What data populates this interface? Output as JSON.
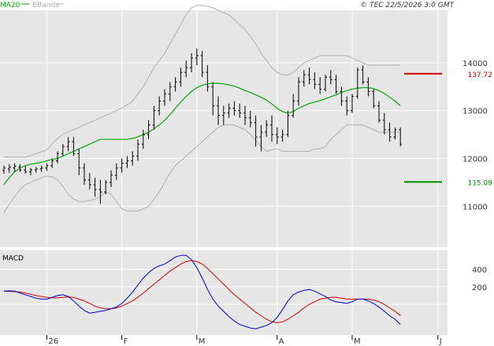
{
  "header": {
    "legend_ma": "MA20",
    "legend_bb": "BBands",
    "copyright": "© TEC 22/5/2026 3:0 GMT"
  },
  "macd_label": "MACD",
  "levels": {
    "resistance": "137.72",
    "support": "115.09"
  },
  "colors": {
    "background": "#e6e6e6",
    "price_bars": "#000000",
    "ma20": "#00aa00",
    "bbands": "#b0b0b0",
    "resistance": "#cc0000",
    "support": "#008800",
    "macd_line": "#0000cc",
    "signal_line": "#cc0000",
    "grid": "#ffffff"
  },
  "chart_data": [
    {
      "type": "ohlc",
      "y_ticks": [
        11000,
        12000,
        13000,
        14000
      ],
      "ylim": [
        10150,
        15100
      ],
      "x_ticks": [
        "26",
        "F",
        "M",
        "A",
        "M",
        "J"
      ],
      "grid": true,
      "series": [
        {
          "name": "MA20",
          "values": [
            11450,
            11600,
            11720,
            11800,
            11850,
            11880,
            11900,
            11920,
            11950,
            11980,
            12000,
            12050,
            12100,
            12150,
            12200,
            12250,
            12300,
            12350,
            12400,
            12400,
            12400,
            12400,
            12400,
            12400,
            12420,
            12450,
            12500,
            12550,
            12620,
            12700,
            12800,
            12920,
            13050,
            13180,
            13300,
            13400,
            13480,
            13530,
            13560,
            13570,
            13570,
            13560,
            13540,
            13510,
            13470,
            13420,
            13380,
            13330,
            13280,
            13220,
            13140,
            13050,
            12980,
            12950,
            12980,
            13050,
            13100,
            13150,
            13180,
            13210,
            13250,
            13290,
            13330,
            13380,
            13420,
            13450,
            13470,
            13480,
            13480,
            13460,
            13420,
            13360,
            13280,
            13200,
            13100
          ]
        },
        {
          "name": "BBands",
          "upper": [
            12030,
            12030,
            12030,
            12030,
            12030,
            12060,
            12100,
            12140,
            12180,
            12300,
            12420,
            12500,
            12560,
            12600,
            12650,
            12700,
            12750,
            12800,
            12850,
            12900,
            12950,
            13000,
            13050,
            13120,
            13200,
            13350,
            13500,
            13700,
            13900,
            14050,
            14200,
            14400,
            14600,
            14800,
            15000,
            15150,
            15200,
            15200,
            15180,
            15150,
            15100,
            15050,
            15000,
            14900,
            14800,
            14700,
            14550,
            14400,
            14200,
            14050,
            13900,
            13800,
            13750,
            13750,
            13800,
            13900,
            14000,
            14050,
            14100,
            14150,
            14150,
            14150,
            14150,
            14150,
            14150,
            14100,
            14050,
            14000,
            13950,
            13950,
            13950,
            13950,
            13950,
            13950,
            13950
          ],
          "lower": [
            10870,
            11050,
            11200,
            11350,
            11450,
            11500,
            11550,
            11600,
            11630,
            11620,
            11550,
            11420,
            11250,
            11150,
            11100,
            11100,
            11120,
            11150,
            11200,
            11300,
            11250,
            11100,
            10950,
            10900,
            10900,
            10900,
            10950,
            11000,
            11150,
            11300,
            11500,
            11700,
            11850,
            11950,
            12050,
            12150,
            12250,
            12350,
            12450,
            12550,
            12650,
            12700,
            12700,
            12700,
            12650,
            12600,
            12500,
            12380,
            12250,
            12150,
            12180,
            12200,
            12150,
            12150,
            12150,
            12150,
            12150,
            12150,
            12200,
            12200,
            12250,
            12400,
            12500,
            12600,
            12700,
            12700,
            12700,
            12700,
            12650,
            12600,
            12550,
            12550,
            12550,
            12550,
            12550
          ]
        }
      ],
      "ohlc": [
        [
          11750,
          11850,
          11680,
          11800
        ],
        [
          11780,
          11880,
          11700,
          11820
        ],
        [
          11800,
          11900,
          11720,
          11840
        ],
        [
          11820,
          11880,
          11720,
          11760
        ],
        [
          11760,
          11840,
          11680,
          11720
        ],
        [
          11720,
          11800,
          11650,
          11760
        ],
        [
          11760,
          11820,
          11700,
          11780
        ],
        [
          11780,
          11850,
          11720,
          11800
        ],
        [
          11800,
          11900,
          11740,
          11850
        ],
        [
          11850,
          12000,
          11800,
          11950
        ],
        [
          11950,
          12150,
          11900,
          12100
        ],
        [
          12100,
          12300,
          12050,
          12250
        ],
        [
          12250,
          12450,
          12150,
          12350
        ],
        [
          12350,
          12450,
          12050,
          12100
        ],
        [
          12100,
          12200,
          11650,
          11800
        ],
        [
          11800,
          11900,
          11450,
          11550
        ],
        [
          11550,
          11700,
          11350,
          11450
        ],
        [
          11450,
          11600,
          11200,
          11350
        ],
        [
          11350,
          11550,
          11050,
          11300
        ],
        [
          11300,
          11550,
          11250,
          11500
        ],
        [
          11500,
          11750,
          11400,
          11650
        ],
        [
          11650,
          11900,
          11550,
          11800
        ],
        [
          11800,
          12000,
          11700,
          11900
        ],
        [
          11900,
          12050,
          11800,
          11950
        ],
        [
          11950,
          12150,
          11850,
          12050
        ],
        [
          12050,
          12400,
          11950,
          12300
        ],
        [
          12300,
          12600,
          12200,
          12500
        ],
        [
          12500,
          12800,
          12400,
          12700
        ],
        [
          12700,
          13100,
          12600,
          13000
        ],
        [
          13000,
          13300,
          12900,
          13200
        ],
        [
          13200,
          13450,
          13100,
          13350
        ],
        [
          13350,
          13600,
          13200,
          13500
        ],
        [
          13500,
          13700,
          13400,
          13600
        ],
        [
          13600,
          13900,
          13500,
          13800
        ],
        [
          13800,
          14050,
          13700,
          13900
        ],
        [
          13900,
          14200,
          13800,
          14100
        ],
        [
          14100,
          14300,
          13950,
          14150
        ],
        [
          14150,
          14250,
          13700,
          13800
        ],
        [
          13800,
          13950,
          13400,
          13500
        ],
        [
          13500,
          13600,
          12900,
          13100
        ],
        [
          13100,
          13300,
          12700,
          12900
        ],
        [
          12900,
          13100,
          12700,
          12950
        ],
        [
          12950,
          13150,
          12850,
          13050
        ],
        [
          13050,
          13200,
          12900,
          13000
        ],
        [
          13000,
          13150,
          12850,
          12950
        ],
        [
          12950,
          13100,
          12700,
          12850
        ],
        [
          12850,
          13000,
          12650,
          12750
        ],
        [
          12750,
          12900,
          12250,
          12450
        ],
        [
          12450,
          12700,
          12150,
          12550
        ],
        [
          12550,
          12800,
          12450,
          12700
        ],
        [
          12700,
          12900,
          12350,
          12500
        ],
        [
          12500,
          12650,
          12300,
          12450
        ],
        [
          12450,
          12600,
          12350,
          12500
        ],
        [
          12500,
          13000,
          12450,
          12900
        ],
        [
          12900,
          13350,
          12850,
          13200
        ],
        [
          13200,
          13700,
          13100,
          13600
        ],
        [
          13600,
          13850,
          13500,
          13750
        ],
        [
          13750,
          13900,
          13550,
          13650
        ],
        [
          13650,
          13800,
          13450,
          13550
        ],
        [
          13550,
          13700,
          13350,
          13450
        ],
        [
          13450,
          13750,
          13400,
          13700
        ],
        [
          13700,
          13850,
          13550,
          13650
        ],
        [
          13650,
          13750,
          13350,
          13400
        ],
        [
          13400,
          13500,
          13100,
          13200
        ],
        [
          13200,
          13300,
          12900,
          13000
        ],
        [
          13000,
          13350,
          12950,
          13300
        ],
        [
          13300,
          13900,
          13250,
          13850
        ],
        [
          13850,
          13950,
          13550,
          13600
        ],
        [
          13600,
          13700,
          13300,
          13400
        ],
        [
          13400,
          13450,
          13050,
          13100
        ],
        [
          13100,
          13200,
          12750,
          12800
        ],
        [
          12800,
          12950,
          12500,
          12600
        ],
        [
          12600,
          12750,
          12350,
          12450
        ],
        [
          12450,
          12650,
          12400,
          12600
        ],
        [
          12600,
          12650,
          12250,
          12300
        ]
      ],
      "reference_lines": [
        {
          "value": 13772,
          "label": "137.72",
          "kind": "resistance"
        },
        {
          "value": 11509,
          "label": "115.09",
          "kind": "support"
        }
      ]
    },
    {
      "type": "line",
      "title": "MACD",
      "y_ticks": [
        200,
        400
      ],
      "ylim": [
        -350,
        620
      ],
      "grid": true,
      "series": [
        {
          "name": "MACD",
          "values": [
            150,
            155,
            150,
            130,
            110,
            90,
            70,
            60,
            60,
            80,
            100,
            110,
            90,
            40,
            -20,
            -70,
            -100,
            -90,
            -80,
            -70,
            -50,
            -30,
            10,
            70,
            140,
            220,
            300,
            360,
            410,
            440,
            460,
            500,
            540,
            560,
            560,
            510,
            420,
            300,
            170,
            60,
            -20,
            -80,
            -140,
            -190,
            -230,
            -250,
            -270,
            -280,
            -260,
            -240,
            -210,
            -150,
            -60,
            40,
            110,
            140,
            160,
            170,
            150,
            120,
            90,
            50,
            30,
            20,
            10,
            30,
            60,
            60,
            40,
            10,
            -30,
            -80,
            -130,
            -170,
            -230
          ]
        },
        {
          "name": "Signal",
          "values": [
            150,
            148,
            145,
            140,
            130,
            115,
            100,
            90,
            80,
            75,
            75,
            80,
            85,
            80,
            60,
            40,
            10,
            -20,
            -40,
            -50,
            -50,
            -40,
            -20,
            10,
            40,
            80,
            130,
            180,
            230,
            280,
            330,
            380,
            420,
            460,
            490,
            500,
            490,
            460,
            410,
            350,
            290,
            230,
            170,
            110,
            60,
            10,
            -40,
            -90,
            -130,
            -170,
            -200,
            -210,
            -200,
            -170,
            -130,
            -90,
            -40,
            0,
            30,
            60,
            70,
            80,
            80,
            70,
            60,
            60,
            60,
            60,
            60,
            50,
            30,
            0,
            -40,
            -80,
            -130
          ]
        }
      ]
    }
  ]
}
